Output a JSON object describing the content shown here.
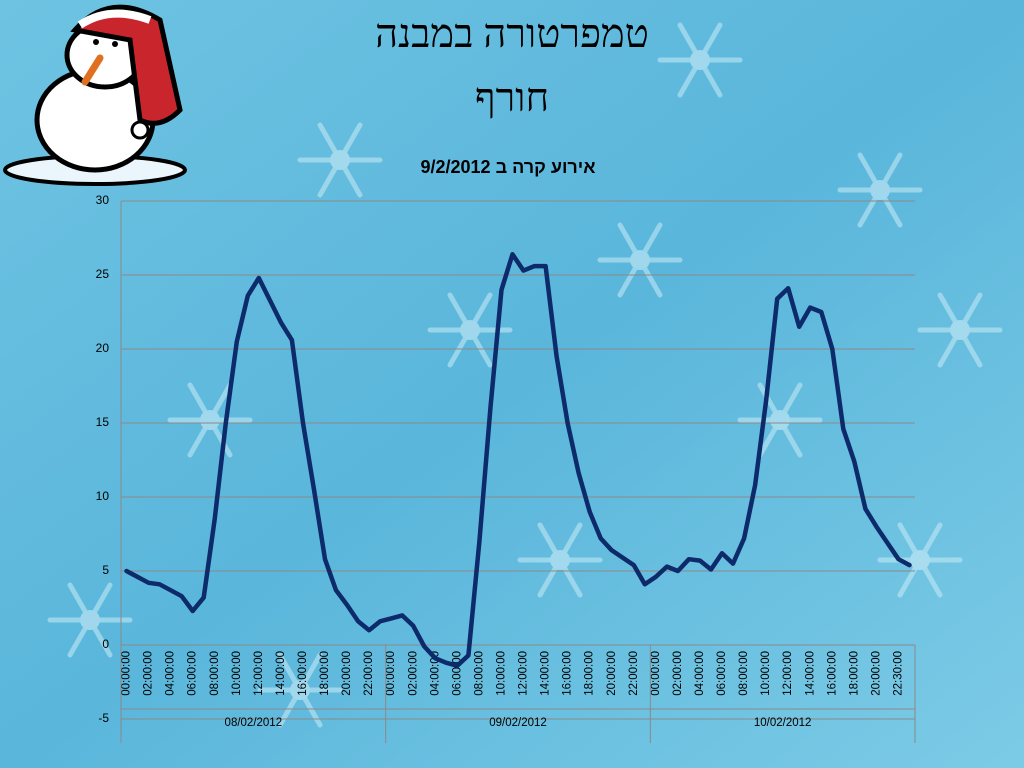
{
  "slide_title": [
    "טמפרטורה במבנה",
    "חורף"
  ],
  "chart_data": {
    "type": "line",
    "title": "אירוע קרה ב 9/2/2012",
    "categories": [
      "00:00:00",
      null,
      "02:00:00",
      null,
      "04:00:00",
      null,
      "06:00:00",
      null,
      "08:00:00",
      null,
      "10:00:00",
      null,
      "12:00:00",
      null,
      "14:00:00",
      null,
      "16:00:00",
      null,
      "18:00:00",
      null,
      "20:00:00",
      null,
      "22:00:00",
      null,
      "00:00:00",
      null,
      "02:00:00",
      null,
      "04:00:00",
      null,
      "06:00:00",
      null,
      "08:00:00",
      null,
      "10:00:00",
      null,
      "12:00:00",
      null,
      "14:00:00",
      null,
      "16:00:00",
      null,
      "18:00:00",
      null,
      "20:00:00",
      null,
      "22:00:00",
      null,
      "00:00:00",
      null,
      "02:00:00",
      null,
      "04:00:00",
      null,
      "06:00:00",
      null,
      "08:00:00",
      null,
      "10:00:00",
      null,
      "12:00:00",
      null,
      "14:00:00",
      null,
      "16:00:00",
      null,
      "18:00:00",
      null,
      "20:00:00",
      null,
      "22:30:00",
      null
    ],
    "date_groups": [
      "08/02/2012",
      "09/02/2012",
      "10/02/2012"
    ],
    "values": [
      5.0,
      4.6,
      4.2,
      4.1,
      3.7,
      3.3,
      2.3,
      3.2,
      8.5,
      15,
      20.5,
      23.6,
      24.8,
      23.3,
      21.8,
      20.6,
      15,
      10.5,
      5.8,
      3.7,
      2.7,
      1.6,
      1.0,
      1.6,
      1.8,
      2.0,
      1.3,
      -0.1,
      -0.9,
      -1.2,
      -1.4,
      -0.7,
      7,
      16,
      24,
      26.4,
      25.3,
      25.6,
      25.6,
      19.5,
      15,
      11.6,
      9,
      7.2,
      6.4,
      5.9,
      5.4,
      4.1,
      4.6,
      5.3,
      5.0,
      5.8,
      5.7,
      5.1,
      6.2,
      5.5,
      7.2,
      10.8,
      16.5,
      23.4,
      24.1,
      21.5,
      22.8,
      22.5,
      20,
      14.6,
      12.4,
      9.2,
      8,
      6.9,
      5.8,
      5.4
    ],
    "color": "#0d2a6b",
    "ylim": [
      -5,
      30
    ],
    "yticks": [
      -5,
      0,
      5,
      10,
      15,
      20,
      25,
      30
    ],
    "grid": true
  }
}
